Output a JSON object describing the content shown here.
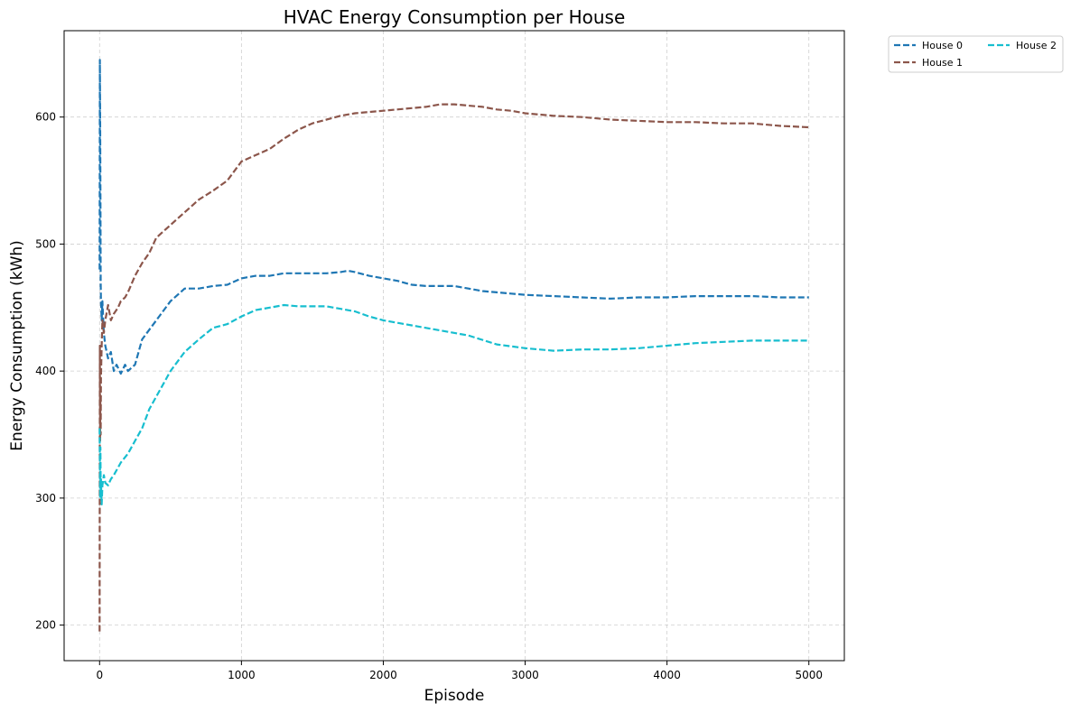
{
  "chart_data": {
    "type": "line",
    "title": "HVAC Energy Consumption per House",
    "xlabel": "Episode",
    "ylabel": "Energy Consumption (kWh)",
    "xlim": [
      -250,
      5250
    ],
    "ylim": [
      172,
      668
    ],
    "xticks": [
      0,
      1000,
      2000,
      3000,
      4000,
      5000
    ],
    "yticks": [
      200,
      300,
      400,
      500,
      600
    ],
    "grid": true,
    "legend_position": "upper-right-outside",
    "legend_columns": 2,
    "series": [
      {
        "name": "House 0",
        "color": "#1f77b4",
        "points": [
          [
            0,
            480
          ],
          [
            2,
            645
          ],
          [
            4,
            600
          ],
          [
            6,
            545
          ],
          [
            8,
            470
          ],
          [
            10,
            455
          ],
          [
            15,
            440
          ],
          [
            20,
            455
          ],
          [
            30,
            430
          ],
          [
            40,
            420
          ],
          [
            60,
            410
          ],
          [
            80,
            415
          ],
          [
            100,
            400
          ],
          [
            120,
            405
          ],
          [
            150,
            398
          ],
          [
            180,
            405
          ],
          [
            200,
            400
          ],
          [
            250,
            405
          ],
          [
            300,
            425
          ],
          [
            400,
            440
          ],
          [
            500,
            455
          ],
          [
            600,
            465
          ],
          [
            700,
            465
          ],
          [
            800,
            467
          ],
          [
            900,
            468
          ],
          [
            1000,
            473
          ],
          [
            1100,
            475
          ],
          [
            1200,
            475
          ],
          [
            1300,
            477
          ],
          [
            1400,
            477
          ],
          [
            1500,
            477
          ],
          [
            1600,
            477
          ],
          [
            1700,
            478
          ],
          [
            1750,
            479
          ],
          [
            1800,
            478
          ],
          [
            1900,
            475
          ],
          [
            2000,
            473
          ],
          [
            2100,
            471
          ],
          [
            2200,
            468
          ],
          [
            2300,
            467
          ],
          [
            2400,
            467
          ],
          [
            2500,
            467
          ],
          [
            2600,
            465
          ],
          [
            2700,
            463
          ],
          [
            2800,
            462
          ],
          [
            2900,
            461
          ],
          [
            3000,
            460
          ],
          [
            3200,
            459
          ],
          [
            3400,
            458
          ],
          [
            3600,
            457
          ],
          [
            3800,
            458
          ],
          [
            4000,
            458
          ],
          [
            4200,
            459
          ],
          [
            4400,
            459
          ],
          [
            4600,
            459
          ],
          [
            4800,
            458
          ],
          [
            5000,
            458
          ]
        ]
      },
      {
        "name": "House 1",
        "color": "#8c564b",
        "points": [
          [
            0,
            195
          ],
          [
            2,
            420
          ],
          [
            4,
            345
          ],
          [
            6,
            380
          ],
          [
            8,
            350
          ],
          [
            10,
            395
          ],
          [
            15,
            420
          ],
          [
            20,
            440
          ],
          [
            30,
            430
          ],
          [
            40,
            440
          ],
          [
            60,
            452
          ],
          [
            80,
            440
          ],
          [
            100,
            445
          ],
          [
            130,
            450
          ],
          [
            150,
            455
          ],
          [
            180,
            458
          ],
          [
            200,
            462
          ],
          [
            250,
            475
          ],
          [
            300,
            485
          ],
          [
            350,
            493
          ],
          [
            400,
            505
          ],
          [
            500,
            515
          ],
          [
            600,
            525
          ],
          [
            700,
            535
          ],
          [
            800,
            542
          ],
          [
            900,
            550
          ],
          [
            1000,
            565
          ],
          [
            1100,
            570
          ],
          [
            1200,
            575
          ],
          [
            1300,
            583
          ],
          [
            1400,
            590
          ],
          [
            1500,
            595
          ],
          [
            1600,
            598
          ],
          [
            1700,
            601
          ],
          [
            1800,
            603
          ],
          [
            1900,
            604
          ],
          [
            2000,
            605
          ],
          [
            2200,
            607
          ],
          [
            2300,
            608
          ],
          [
            2400,
            610
          ],
          [
            2500,
            610
          ],
          [
            2600,
            609
          ],
          [
            2700,
            608
          ],
          [
            2800,
            606
          ],
          [
            2900,
            605
          ],
          [
            3000,
            603
          ],
          [
            3200,
            601
          ],
          [
            3400,
            600
          ],
          [
            3600,
            598
          ],
          [
            3800,
            597
          ],
          [
            4000,
            596
          ],
          [
            4200,
            596
          ],
          [
            4400,
            595
          ],
          [
            4600,
            595
          ],
          [
            4800,
            593
          ],
          [
            5000,
            592
          ]
        ]
      },
      {
        "name": "House 2",
        "color": "#17becf",
        "points": [
          [
            0,
            355
          ],
          [
            2,
            330
          ],
          [
            4,
            300
          ],
          [
            6,
            340
          ],
          [
            8,
            310
          ],
          [
            10,
            315
          ],
          [
            15,
            295
          ],
          [
            20,
            310
          ],
          [
            30,
            318
          ],
          [
            40,
            312
          ],
          [
            60,
            310
          ],
          [
            80,
            315
          ],
          [
            100,
            318
          ],
          [
            150,
            328
          ],
          [
            200,
            335
          ],
          [
            250,
            345
          ],
          [
            300,
            355
          ],
          [
            350,
            370
          ],
          [
            400,
            380
          ],
          [
            450,
            390
          ],
          [
            500,
            400
          ],
          [
            600,
            415
          ],
          [
            700,
            425
          ],
          [
            800,
            434
          ],
          [
            900,
            437
          ],
          [
            1000,
            443
          ],
          [
            1100,
            448
          ],
          [
            1200,
            450
          ],
          [
            1300,
            452
          ],
          [
            1400,
            451
          ],
          [
            1500,
            451
          ],
          [
            1600,
            451
          ],
          [
            1700,
            449
          ],
          [
            1800,
            447
          ],
          [
            1900,
            443
          ],
          [
            2000,
            440
          ],
          [
            2200,
            436
          ],
          [
            2400,
            432
          ],
          [
            2600,
            428
          ],
          [
            2800,
            421
          ],
          [
            3000,
            418
          ],
          [
            3200,
            416
          ],
          [
            3400,
            417
          ],
          [
            3600,
            417
          ],
          [
            3800,
            418
          ],
          [
            4000,
            420
          ],
          [
            4200,
            422
          ],
          [
            4400,
            423
          ],
          [
            4600,
            424
          ],
          [
            4800,
            424
          ],
          [
            5000,
            424
          ]
        ]
      }
    ]
  }
}
